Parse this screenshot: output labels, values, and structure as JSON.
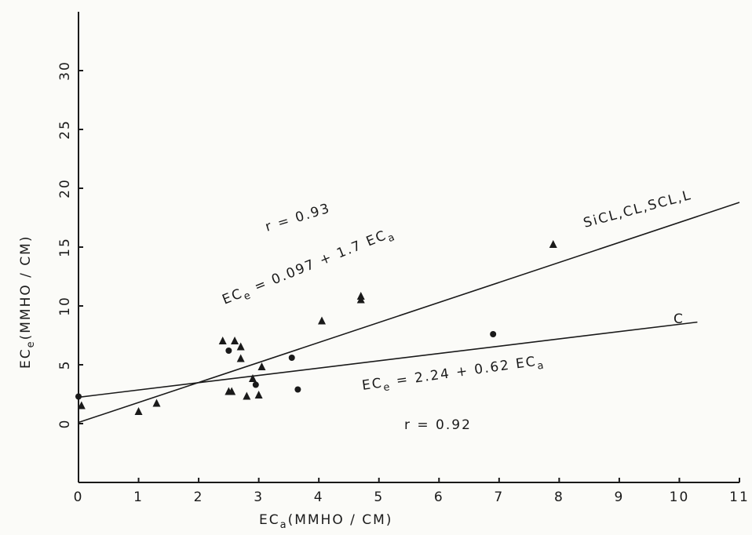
{
  "chart_data": {
    "type": "scatter",
    "x_label_main": "EC",
    "x_label_sub": "a",
    "x_label_unit": "(MMHO / CM)",
    "y_label_main": "EC",
    "y_label_sub": "e",
    "y_label_unit": "(MMHO / CM)",
    "xlim": [
      0,
      11
    ],
    "ylim": [
      -5,
      35
    ],
    "xticks": [
      0,
      1,
      2,
      3,
      4,
      5,
      6,
      7,
      8,
      9,
      10,
      11
    ],
    "yticks": [
      0,
      5,
      10,
      15,
      20,
      25,
      30
    ],
    "series": [
      {
        "marker": "triangle",
        "color": "#1a1a1a",
        "x": [
          0.05,
          1,
          1.3,
          2.4,
          2.6,
          2.7,
          2.7,
          2.5,
          2.55,
          2.9,
          2.8,
          3,
          3.05,
          4.05,
          4.7,
          4.7,
          7.9
        ],
        "values": [
          1.5,
          1,
          1.7,
          7,
          7,
          6.5,
          5.5,
          2.7,
          2.7,
          3.8,
          2.3,
          2.4,
          4.8,
          8.7,
          10.5,
          10.8,
          15.2
        ]
      },
      {
        "marker": "circle",
        "color": "#1a1a1a",
        "x": [
          0,
          2.5,
          2.95,
          3.55,
          3.65,
          6.9
        ],
        "values": [
          2.3,
          6.2,
          3.3,
          5.6,
          2.9,
          7.6
        ]
      }
    ],
    "lines": [
      {
        "intercept": 0.097,
        "slope": 1.7,
        "x_range": [
          0,
          11
        ],
        "label_main": "SiCL,CL,SCL,L",
        "equation": [
          "EC",
          "e",
          " = 0.097 + 1.7 EC",
          "a"
        ],
        "r_label": "r = 0.93"
      },
      {
        "intercept": 2.24,
        "slope": 0.62,
        "x_range": [
          0,
          10.3
        ],
        "label_main": "C",
        "equation": [
          "EC",
          "e",
          " = 2.24 + 0.62 EC",
          "a"
        ],
        "r_label": "r = 0.92"
      }
    ]
  }
}
